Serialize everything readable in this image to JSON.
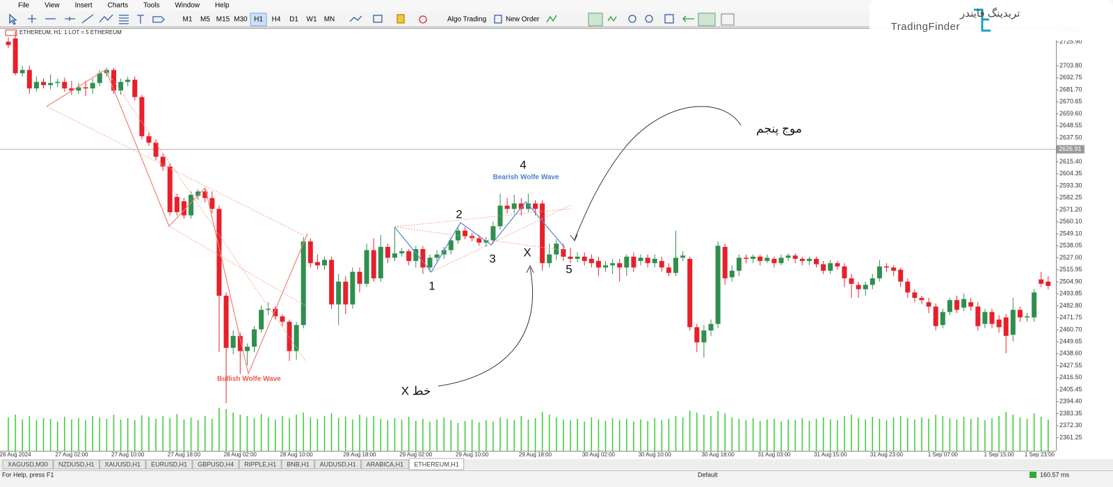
{
  "menu": [
    "File",
    "View",
    "Insert",
    "Charts",
    "Tools",
    "Window",
    "Help"
  ],
  "toolbar": {
    "timeframes": [
      "M1",
      "M5",
      "M15",
      "M30",
      "H1",
      "H4",
      "D1",
      "W1",
      "MN"
    ],
    "active_timeframe": "H1",
    "algo_trading": "Algo Trading",
    "new_order": "New Order"
  },
  "logo": {
    "name_fa": "تریدینگ فایندر",
    "name_en": "TradingFinder"
  },
  "chart_data": {
    "type": "candlestick",
    "title": "ETHEREUM, H1:  1 LOT = 5 ETHEREUM",
    "colors": {
      "up": "#2f8f4e",
      "down": "#e8202a",
      "volume": "#33cc33"
    },
    "ylim": [
      2349.1,
      2740.1
    ],
    "yticks": [
      2736.95,
      {
        "value": 2725.9,
        "label": "2725.90"
      },
      {
        "value": 2703.8,
        "label": "2703.80"
      },
      2692.75,
      {
        "value": 2681.7,
        "label": "2681.70"
      },
      2670.65,
      {
        "value": 2659.6,
        "label": "2659.60"
      },
      2648.55,
      {
        "value": 2637.5,
        "label": "2637.50"
      },
      {
        "value": 2615.4,
        "label": "2615.40"
      },
      2604.35,
      {
        "value": 2593.3,
        "label": "2593.30"
      },
      2582.25,
      {
        "value": 2571.2,
        "label": "2571.20"
      },
      {
        "value": 2560.1,
        "label": "2560.10"
      },
      {
        "value": 2549.1,
        "label": "2549.10"
      },
      2538.05,
      {
        "value": 2527,
        "label": "2527.00"
      },
      2515.95,
      {
        "value": 2504.9,
        "label": "2504.90"
      },
      2493.85,
      {
        "value": 2482.8,
        "label": "2482.80"
      },
      2471.75,
      {
        "value": 2460.7,
        "label": "2460.70"
      },
      2449.65,
      {
        "value": 2438.6,
        "label": "2438.60"
      },
      2427.55,
      {
        "value": 2416.5,
        "label": "2416.50"
      },
      2405.45,
      {
        "value": 2394.4,
        "label": "2394.40"
      },
      2383.35,
      {
        "value": 2372.3,
        "label": "2372.30"
      },
      2361.25
    ],
    "current_price": 2626.91,
    "categories": [
      null,
      "26 Aug 2024",
      null,
      null,
      null,
      null,
      null,
      null,
      null,
      "27 Aug 02:00",
      null,
      null,
      null,
      null,
      null,
      null,
      null,
      "27 Aug 10:00",
      null,
      null,
      null,
      null,
      null,
      null,
      null,
      "27 Aug 18:00",
      null,
      null,
      null,
      null,
      null,
      null,
      null,
      "28 Aug 02:00",
      null,
      null,
      null,
      null,
      null,
      null,
      null,
      "28 Aug 10:00",
      null,
      null,
      null,
      null,
      null,
      null,
      null,
      null,
      "28 Aug 18:00",
      null,
      null,
      null,
      null,
      null,
      null,
      null,
      "29 Aug 02:00",
      null,
      null,
      null,
      null,
      null,
      null,
      null,
      "29 Aug 10:00",
      null,
      null,
      null,
      null,
      null,
      null,
      null,
      null,
      "29 Aug 18:00",
      null,
      null,
      null,
      null,
      null,
      null,
      null,
      null,
      "30 Aug 02:00",
      null,
      null,
      null,
      null,
      null,
      null,
      null,
      "30 Aug 10:00",
      null,
      null,
      null,
      null,
      null,
      null,
      null,
      null,
      "30 Aug 18:00",
      null,
      null,
      null,
      null,
      null,
      null,
      null,
      "31 Aug 03:00",
      null,
      null,
      null,
      null,
      null,
      null,
      null,
      "31 Aug 15:00",
      null,
      null,
      null,
      null,
      null,
      null,
      null,
      "31 Aug 23:00",
      null,
      null,
      null,
      null,
      null,
      null,
      null,
      "1 Sep 07:00",
      null,
      null,
      null,
      null,
      null,
      null,
      null,
      "1 Sep 15:00",
      null,
      null,
      null,
      null,
      null,
      null,
      "1 Sep 23:00"
    ],
    "ohlc": [
      [
        2726,
        2730,
        2720,
        2723
      ],
      [
        2729,
        2736,
        2695,
        2697
      ],
      [
        2697,
        2704,
        2694,
        2700
      ],
      [
        2700,
        2704,
        2678,
        2683
      ],
      [
        2683,
        2694,
        2680,
        2689
      ],
      [
        2689,
        2692,
        2683,
        2686
      ],
      [
        2686,
        2696,
        2682,
        2688
      ],
      [
        2688,
        2692,
        2684,
        2689
      ],
      [
        2689,
        2693,
        2680,
        2683
      ],
      [
        2683,
        2690,
        2677,
        2681
      ],
      [
        2681,
        2688,
        2678,
        2684
      ],
      [
        2684,
        2690,
        2676,
        2683
      ],
      [
        2683,
        2692,
        2678,
        2688
      ],
      [
        2688,
        2700,
        2685,
        2697
      ],
      [
        2697,
        2702,
        2694,
        2700
      ],
      [
        2700,
        2702,
        2678,
        2681
      ],
      [
        2681,
        2692,
        2677,
        2689
      ],
      [
        2689,
        2694,
        2685,
        2691
      ],
      [
        2691,
        2694,
        2672,
        2675
      ],
      [
        2675,
        2677,
        2636,
        2639
      ],
      [
        2639,
        2643,
        2630,
        2633
      ],
      [
        2633,
        2636,
        2617,
        2620
      ],
      [
        2620,
        2623,
        2607,
        2611
      ],
      [
        2611,
        2614,
        2566,
        2569
      ],
      [
        2583,
        2586,
        2566,
        2569
      ],
      [
        2579,
        2582,
        2563,
        2566
      ],
      [
        2566,
        2588,
        2563,
        2585
      ],
      [
        2584,
        2590,
        2580,
        2588
      ],
      [
        2588,
        2590,
        2578,
        2582
      ],
      [
        2582,
        2588,
        2568,
        2572
      ],
      [
        2572,
        2575,
        2440,
        2492
      ],
      [
        2492,
        2495,
        2393,
        2444
      ],
      [
        2444,
        2460,
        2438,
        2455
      ],
      [
        2455,
        2458,
        2420,
        2441
      ],
      [
        2441,
        2448,
        2428,
        2445
      ],
      [
        2445,
        2464,
        2440,
        2461
      ],
      [
        2461,
        2483,
        2458,
        2479
      ],
      [
        2479,
        2486,
        2474,
        2480
      ],
      [
        2480,
        2482,
        2470,
        2473
      ],
      [
        2473,
        2475,
        2464,
        2468
      ],
      [
        2468,
        2470,
        2432,
        2441
      ],
      [
        2441,
        2468,
        2433,
        2465
      ],
      [
        2465,
        2546,
        2462,
        2542
      ],
      [
        2542,
        2545,
        2518,
        2522
      ],
      [
        2523,
        2530,
        2516,
        2520
      ],
      [
        2520,
        2528,
        2516,
        2525
      ],
      [
        2525,
        2528,
        2480,
        2484
      ],
      [
        2484,
        2512,
        2465,
        2505
      ],
      [
        2505,
        2510,
        2475,
        2484
      ],
      [
        2484,
        2518,
        2480,
        2514
      ],
      [
        2514,
        2518,
        2495,
        2503
      ],
      [
        2503,
        2540,
        2500,
        2534
      ],
      [
        2534,
        2545,
        2505,
        2508
      ],
      [
        2508,
        2548,
        2505,
        2537
      ],
      [
        2537,
        2540,
        2522,
        2527
      ],
      [
        2527,
        2555,
        2524,
        2531
      ],
      [
        2531,
        2536,
        2528,
        2533
      ],
      [
        2533,
        2535,
        2520,
        2524
      ],
      [
        2524,
        2538,
        2518,
        2535
      ],
      [
        2535,
        2538,
        2512,
        2518
      ],
      [
        2518,
        2530,
        2514,
        2527
      ],
      [
        2527,
        2534,
        2524,
        2530
      ],
      [
        2530,
        2537,
        2526,
        2534
      ],
      [
        2534,
        2546,
        2530,
        2543
      ],
      [
        2543,
        2556,
        2540,
        2552
      ],
      [
        2552,
        2555,
        2544,
        2547
      ],
      [
        2547,
        2550,
        2542,
        2545
      ],
      [
        2545,
        2548,
        2538,
        2541
      ],
      [
        2541,
        2546,
        2537,
        2543
      ],
      [
        2543,
        2560,
        2540,
        2556
      ],
      [
        2556,
        2586,
        2553,
        2575
      ],
      [
        2575,
        2582,
        2568,
        2572
      ],
      [
        2572,
        2585,
        2568,
        2577
      ],
      [
        2577,
        2582,
        2566,
        2572
      ],
      [
        2572,
        2586,
        2569,
        2577
      ],
      [
        2577,
        2580,
        2566,
        2572
      ],
      [
        2577,
        2580,
        2515,
        2522
      ],
      [
        2522,
        2540,
        2518,
        2530
      ],
      [
        2530,
        2544,
        2525,
        2540
      ],
      [
        2535,
        2540,
        2524,
        2528
      ],
      [
        2528,
        2536,
        2522,
        2526
      ],
      [
        2526,
        2532,
        2523,
        2528
      ],
      [
        2528,
        2532,
        2520,
        2524
      ],
      [
        2526,
        2530,
        2518,
        2522
      ],
      [
        2524,
        2528,
        2510,
        2518
      ],
      [
        2518,
        2524,
        2514,
        2520
      ],
      [
        2520,
        2526,
        2512,
        2522
      ],
      [
        2522,
        2526,
        2505,
        2518
      ],
      [
        2518,
        2530,
        2510,
        2528
      ],
      [
        2528,
        2532,
        2514,
        2518
      ],
      [
        2524,
        2530,
        2520,
        2527
      ],
      [
        2527,
        2530,
        2518,
        2522
      ],
      [
        2522,
        2530,
        2518,
        2526
      ],
      [
        2524,
        2528,
        2514,
        2518
      ],
      [
        2518,
        2522,
        2510,
        2513
      ],
      [
        2513,
        2552,
        2510,
        2527
      ],
      [
        2527,
        2533,
        2524,
        2529
      ],
      [
        2526,
        2528,
        2460,
        2463
      ],
      [
        2463,
        2466,
        2440,
        2449
      ],
      [
        2449,
        2465,
        2435,
        2460
      ],
      [
        2460,
        2470,
        2455,
        2466
      ],
      [
        2466,
        2542,
        2462,
        2538
      ],
      [
        2537,
        2540,
        2502,
        2508
      ],
      [
        2509,
        2520,
        2505,
        2515
      ],
      [
        2515,
        2530,
        2510,
        2527
      ],
      [
        2527,
        2530,
        2522,
        2526
      ],
      [
        2526,
        2530,
        2522,
        2528
      ],
      [
        2528,
        2530,
        2520,
        2524
      ],
      [
        2524,
        2530,
        2522,
        2527
      ],
      [
        2526,
        2528,
        2518,
        2522
      ],
      [
        2522,
        2530,
        2520,
        2527
      ],
      [
        2527,
        2531,
        2524,
        2529
      ],
      [
        2529,
        2531,
        2522,
        2526
      ],
      [
        2526,
        2528,
        2520,
        2524
      ],
      [
        2524,
        2528,
        2520,
        2526
      ],
      [
        2526,
        2528,
        2518,
        2521
      ],
      [
        2521,
        2524,
        2512,
        2515
      ],
      [
        2515,
        2525,
        2512,
        2522
      ],
      [
        2522,
        2524,
        2516,
        2519
      ],
      [
        2519,
        2522,
        2500,
        2508
      ],
      [
        2508,
        2512,
        2490,
        2503
      ],
      [
        2502,
        2505,
        2490,
        2498
      ],
      [
        2498,
        2505,
        2492,
        2502
      ],
      [
        2502,
        2512,
        2498,
        2508
      ],
      [
        2508,
        2525,
        2505,
        2519
      ],
      [
        2519,
        2522,
        2514,
        2518
      ],
      [
        2518,
        2520,
        2510,
        2515
      ],
      [
        2516,
        2518,
        2500,
        2505
      ],
      [
        2505,
        2508,
        2490,
        2495
      ],
      [
        2495,
        2498,
        2486,
        2490
      ],
      [
        2490,
        2492,
        2484,
        2488
      ],
      [
        2486,
        2490,
        2476,
        2482
      ],
      [
        2482,
        2485,
        2460,
        2464
      ],
      [
        2465,
        2480,
        2462,
        2477
      ],
      [
        2477,
        2490,
        2474,
        2488
      ],
      [
        2488,
        2492,
        2476,
        2479
      ],
      [
        2481,
        2494,
        2478,
        2489
      ],
      [
        2486,
        2490,
        2478,
        2482
      ],
      [
        2482,
        2486,
        2460,
        2464
      ],
      [
        2466,
        2480,
        2462,
        2477
      ],
      [
        2477,
        2480,
        2462,
        2466
      ],
      [
        2470,
        2474,
        2458,
        2463
      ],
      [
        2472,
        2475,
        2439,
        2455
      ],
      [
        2456,
        2490,
        2450,
        2479
      ],
      [
        2479,
        2482,
        2468,
        2472
      ],
      [
        2472,
        2476,
        2468,
        2473
      ],
      [
        2472,
        2498,
        2468,
        2495
      ],
      [
        2507,
        2514,
        2500,
        2503
      ],
      [
        2505,
        2510,
        2498,
        2501
      ]
    ],
    "volumes": [
      48,
      52,
      45,
      50,
      44,
      47,
      46,
      42,
      49,
      45,
      47,
      44,
      50,
      48,
      46,
      52,
      45,
      47,
      44,
      51,
      49,
      46,
      50,
      47,
      53,
      45,
      48,
      44,
      50,
      46,
      62,
      60,
      55,
      52,
      50,
      47,
      53,
      48,
      45,
      50,
      47,
      52,
      55,
      48,
      46,
      50,
      54,
      47,
      49,
      45,
      52,
      48,
      50,
      46,
      44,
      47,
      45,
      49,
      43,
      46,
      42,
      45,
      48,
      44,
      40,
      43,
      45,
      41,
      44,
      42,
      48,
      46,
      44,
      50,
      45,
      47,
      56,
      52,
      48,
      45,
      44,
      46,
      42,
      48,
      45,
      43,
      47,
      44,
      46,
      42,
      45,
      43,
      47,
      44,
      46,
      50,
      48,
      58,
      55,
      52,
      50,
      57,
      54,
      48,
      46,
      44,
      47,
      43,
      45,
      46,
      42,
      45,
      44,
      47,
      43,
      46,
      48,
      45,
      44,
      50,
      52,
      47,
      45,
      49,
      46,
      44,
      48,
      50,
      47,
      45,
      48,
      46,
      52,
      50,
      47,
      45,
      49,
      46,
      48,
      44,
      47,
      50,
      56,
      52,
      48,
      46,
      54,
      49,
      45
    ]
  },
  "annotations": {
    "bearish": "Bearish Wolfe Wave",
    "bullish": "Bullish Wolfe Wave",
    "p1": "1",
    "p2": "2",
    "p3": "3",
    "p4": "4",
    "p5": "5",
    "px": "X",
    "fifth_wave": "موج پنجم",
    "x_line": "خط X"
  },
  "tabs": [
    "XAGUSD,M30",
    "NZDUSD,H1",
    "XAUUSD,H1",
    "EURUSD,H1",
    "GBPUSD,H4",
    "RIPPLE,H1",
    "BNB,H1",
    "AUDUSD,H1",
    "ARABICA,H1",
    "ETHEREUM,H1"
  ],
  "status": {
    "help": "For Help, press F1",
    "profile": "Default",
    "ping": "160.57 ms"
  }
}
